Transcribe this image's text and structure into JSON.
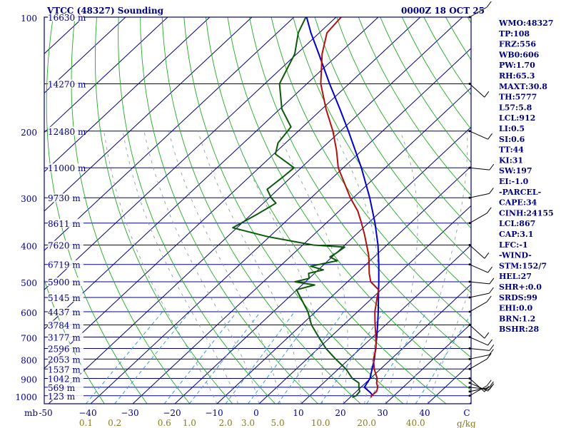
{
  "header": {
    "title": "VTCC (48327) Sounding",
    "time": "0000Z 18 OCT 25"
  },
  "colors": {
    "frame": "#000080",
    "isotherm": "#000080",
    "dry_adiabat": "#22aa22",
    "moist_adiabat": "#8aa0a0",
    "mixing_ratio": "#3a9ad9",
    "temperature": "#b01010",
    "dewpoint": "#0a5a0a",
    "parcel": "#0000cc",
    "wind": "#000000",
    "mix_text": "#8a7a1a",
    "text": "#000080"
  },
  "axes": {
    "pressure_label_prefix": "mb",
    "pressure_labels": [
      {
        "p": 100,
        "text": "100"
      },
      {
        "p": 200,
        "text": "200"
      },
      {
        "p": 300,
        "text": "300"
      },
      {
        "p": 400,
        "text": "400"
      },
      {
        "p": 500,
        "text": "500"
      },
      {
        "p": 600,
        "text": "600"
      },
      {
        "p": 700,
        "text": "700"
      },
      {
        "p": 800,
        "text": "800"
      },
      {
        "p": 900,
        "text": "900"
      },
      {
        "p": 1000,
        "text": "1000"
      }
    ],
    "temp_labels": [
      {
        "t": -50,
        "text": "-50"
      },
      {
        "t": -40,
        "text": "−40"
      },
      {
        "t": -30,
        "text": "−30"
      },
      {
        "t": -20,
        "text": "−20"
      },
      {
        "t": -10,
        "text": "−10"
      },
      {
        "t": 0,
        "text": "0"
      },
      {
        "t": 10,
        "text": "10"
      },
      {
        "t": 20,
        "text": "20"
      },
      {
        "t": 30,
        "text": "30"
      },
      {
        "t": 40,
        "text": "40"
      },
      {
        "t": 50,
        "text": "C"
      }
    ],
    "mixing_ratio_labels": [
      "0.1",
      "0.2",
      "0.6",
      "1.0",
      "2.0",
      "3.0",
      "5.0",
      "10.0",
      "20.0",
      "40.0"
    ],
    "mixing_ratio_unit": "g/kg",
    "height_labels": [
      {
        "p": 100,
        "text": "16630 m"
      },
      {
        "p": 150,
        "text": "14270 m"
      },
      {
        "p": 200,
        "text": "12480 m"
      },
      {
        "p": 250,
        "text": "11000 m"
      },
      {
        "p": 300,
        "text": "9730 m"
      },
      {
        "p": 350,
        "text": "8611 m"
      },
      {
        "p": 400,
        "text": "7620 m"
      },
      {
        "p": 450,
        "text": "6719 m"
      },
      {
        "p": 500,
        "text": "5900 m"
      },
      {
        "p": 550,
        "text": "5145 m"
      },
      {
        "p": 600,
        "text": "4437 m"
      },
      {
        "p": 650,
        "text": "3784 m"
      },
      {
        "p": 700,
        "text": "3177 m"
      },
      {
        "p": 750,
        "text": "2596 m"
      },
      {
        "p": 800,
        "text": "2053 m"
      },
      {
        "p": 850,
        "text": "1537 m"
      },
      {
        "p": 900,
        "text": "1042 m"
      },
      {
        "p": 950,
        "text": "569 m"
      },
      {
        "p": 1000,
        "text": "123 m"
      }
    ]
  },
  "chart_data": {
    "type": "skew-t sounding",
    "title": "VTCC (48327) Sounding",
    "valid_time": "0000Z 18 OCT 25",
    "p_range": [
      100,
      1050
    ],
    "t_range_at_bottom": [
      -50,
      50
    ],
    "temperature": [
      [
        1010,
        25.0
      ],
      [
        1000,
        24.6
      ],
      [
        975,
        24.8
      ],
      [
        950,
        24.0
      ],
      [
        925,
        22.6
      ],
      [
        900,
        21.6
      ],
      [
        850,
        18.5
      ],
      [
        800,
        15.8
      ],
      [
        750,
        13.7
      ],
      [
        700,
        10.8
      ],
      [
        650,
        7.5
      ],
      [
        600,
        4.1
      ],
      [
        550,
        1.0
      ],
      [
        525,
        -0.6
      ],
      [
        500,
        -4.5
      ],
      [
        475,
        -7.0
      ],
      [
        450,
        -9.3
      ],
      [
        425,
        -11.8
      ],
      [
        400,
        -14.8
      ],
      [
        375,
        -18.0
      ],
      [
        350,
        -21.6
      ],
      [
        325,
        -25.6
      ],
      [
        300,
        -30.7
      ],
      [
        275,
        -35.7
      ],
      [
        250,
        -41.2
      ],
      [
        225,
        -46.0
      ],
      [
        200,
        -51.8
      ],
      [
        175,
        -59.0
      ],
      [
        150,
        -66.7
      ],
      [
        125,
        -74.0
      ],
      [
        110,
        -78.2
      ],
      [
        100,
        -78.8
      ]
    ],
    "dewpoint": [
      [
        1010,
        20.5
      ],
      [
        1000,
        21.0
      ],
      [
        975,
        20.8
      ],
      [
        950,
        19.5
      ],
      [
        925,
        18.4
      ],
      [
        900,
        15.7
      ],
      [
        850,
        11.8
      ],
      [
        800,
        6.8
      ],
      [
        750,
        1.8
      ],
      [
        700,
        -2.8
      ],
      [
        650,
        -7.6
      ],
      [
        600,
        -11.8
      ],
      [
        550,
        -17.2
      ],
      [
        525,
        -20.1
      ],
      [
        510,
        -17.0
      ],
      [
        500,
        -22.5
      ],
      [
        490,
        -20.0
      ],
      [
        475,
        -21.4
      ],
      [
        465,
        -18.8
      ],
      [
        455,
        -22.7
      ],
      [
        440,
        -17.8
      ],
      [
        430,
        -20.5
      ],
      [
        420,
        -20.0
      ],
      [
        405,
        -19.5
      ],
      [
        400,
        -27.5
      ],
      [
        380,
        -40.5
      ],
      [
        360,
        -51.0
      ],
      [
        330,
        -48.5
      ],
      [
        310,
        -47.0
      ],
      [
        300,
        -49.5
      ],
      [
        285,
        -52.6
      ],
      [
        265,
        -52.0
      ],
      [
        250,
        -51.7
      ],
      [
        245,
        -53.6
      ],
      [
        230,
        -59.6
      ],
      [
        215,
        -61.8
      ],
      [
        195,
        -62.8
      ],
      [
        175,
        -69.5
      ],
      [
        150,
        -76.5
      ],
      [
        125,
        -80.5
      ],
      [
        110,
        -85.0
      ],
      [
        100,
        -87.2
      ]
    ],
    "parcel": [
      [
        1000,
        25.0
      ],
      [
        980,
        23.5
      ],
      [
        950,
        20.8
      ],
      [
        900,
        19.9
      ],
      [
        850,
        18.0
      ],
      [
        800,
        16.0
      ],
      [
        750,
        13.6
      ],
      [
        700,
        11.0
      ],
      [
        650,
        8.1
      ],
      [
        600,
        4.9
      ],
      [
        550,
        1.3
      ],
      [
        500,
        -2.6
      ],
      [
        450,
        -7.0
      ],
      [
        400,
        -12.1
      ],
      [
        350,
        -18.4
      ],
      [
        300,
        -26.1
      ],
      [
        250,
        -35.7
      ],
      [
        200,
        -48.1
      ],
      [
        175,
        -55.7
      ],
      [
        150,
        -64.6
      ],
      [
        125,
        -74.8
      ],
      [
        110,
        -82.0
      ],
      [
        100,
        -87.0
      ]
    ],
    "wind_levels_hPa": [
      1000,
      975,
      950,
      925,
      900,
      850,
      800,
      750,
      700,
      650,
      600,
      550,
      500,
      450,
      400,
      350,
      300,
      250,
      200,
      150,
      100
    ],
    "indices": [
      "WMO:48327",
      "TP:108",
      "FRZ:556",
      "WB0:606",
      "PW:1.70",
      "RH:65.3",
      "MAXT:30.8",
      "TH:5777",
      "L57:5.8",
      "LCL:912",
      "LI:0.5",
      "SI:0.6",
      "TT:44",
      "KI:31",
      "SW:197",
      "EI:-1.0",
      "-PARCEL-",
      "CAPE:34",
      "CINH:24155",
      "LCL:867",
      "CAP:3.1",
      "LFC:-1",
      "-WIND-",
      "STM:152/7",
      "HEL:27",
      "SHR+:0.0",
      "SRDS:99",
      "EHI:0.0",
      "BRN:1.2",
      "BSHR:28"
    ]
  }
}
